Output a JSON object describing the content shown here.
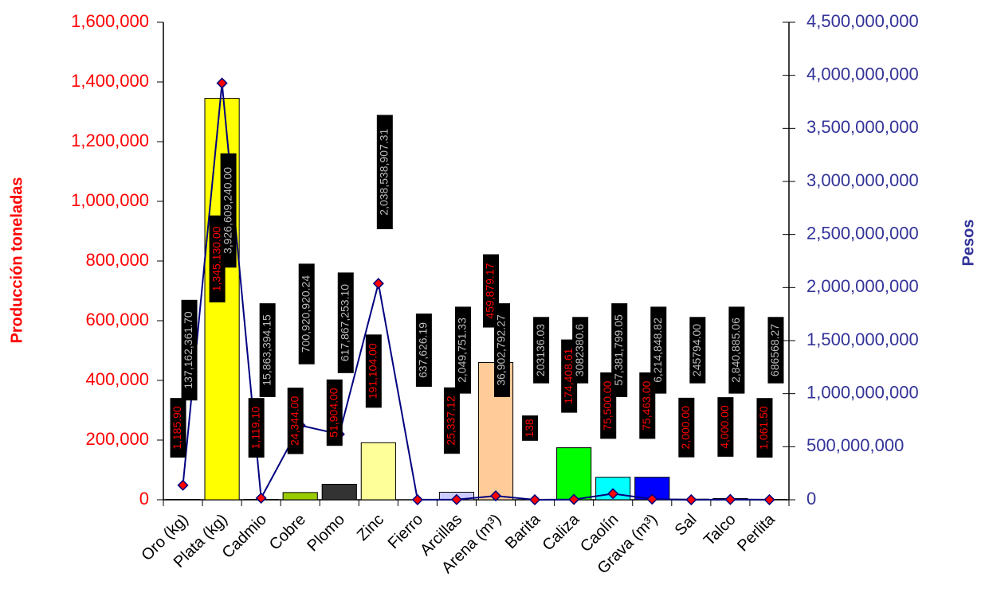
{
  "chart_data": {
    "type": "bar",
    "categories": [
      "Oro (kg)",
      "Plata (kg)",
      "Cadmio",
      "Cobre",
      "Plomo",
      "Zinc",
      "Fierro",
      "Arcillas",
      "Arena (m³)",
      "Barita",
      "Caliza",
      "Caolín",
      "Grava (m³)",
      "Sal",
      "Talco",
      "Perlita"
    ],
    "ylabel": "Producción toneladas",
    "y2label": "Pesos",
    "ylim": [
      0,
      1600000
    ],
    "yticks": [
      0,
      {
        "value": 200000,
        "label": "200,000"
      },
      {
        "value": 400000,
        "label": "400,000"
      },
      {
        "value": 600000,
        "label": "600,000"
      },
      {
        "value": 800000,
        "label": "800,000"
      },
      {
        "value": 1000000,
        "label": "1,000,000"
      },
      {
        "value": 1200000,
        "label": "1,200,000"
      },
      {
        "value": 1400000,
        "label": "1,400,000"
      },
      {
        "value": 1600000,
        "label": "1,600,000"
      }
    ],
    "y2lim": [
      0,
      4500000000
    ],
    "y2ticks": [
      0,
      {
        "value": 500000000,
        "label": "500,000,000"
      },
      {
        "value": 1000000000,
        "label": "1,000,000,000"
      },
      {
        "value": 1500000000,
        "label": "1,500,000,000"
      },
      {
        "value": 2000000000,
        "label": "2,000,000,000"
      },
      {
        "value": 2500000000,
        "label": "2,500,000,000"
      },
      {
        "value": 3000000000,
        "label": "3,000,000,000"
      },
      {
        "value": 3500000000,
        "label": "3,500,000,000"
      },
      {
        "value": 4000000000,
        "label": "4,000,000,000"
      },
      {
        "value": 4500000000,
        "label": "4,500,000,000"
      }
    ],
    "ycolor": "#ff0000",
    "y2color": "#333399",
    "series": [
      {
        "type": "bar",
        "colors": [
          "#ffcc00",
          "#ffff00",
          "#9999ff",
          "#99cc00",
          "#333333",
          "#ffff99",
          null,
          "#ccccff",
          "#ffcc99",
          "#ff8080",
          "#00ff00",
          "#00ffff",
          "#0000ff",
          "#ff00ff",
          "#333399",
          "#ffcc00"
        ],
        "values": [
          1185.9,
          1345130,
          1119.1,
          24344,
          51904,
          191104,
          null,
          25337.12,
          459879.17,
          138,
          174408.61,
          75500,
          75463,
          2000,
          4000,
          1061.5
        ],
        "value_labels": [
          "1,185.90",
          "1,345,130.00",
          "1,119.10",
          "24,344.00",
          "51,904.00",
          "191,104.00",
          null,
          "25,337.12",
          "459,879.17",
          "138",
          "174,408.61",
          "75,500.00",
          "75,463.00",
          "2,000.00",
          "4,000.00",
          "1,061.50"
        ]
      },
      {
        "type": "line",
        "axis": "y2",
        "color": "#000080",
        "marker_color": "#ff0000",
        "values": [
          137162361.7,
          3926609240,
          15863394.15,
          700920920.24,
          617867253.1,
          2038538907.31,
          637626.19,
          2049751.33,
          36902792.27,
          203136.03,
          3082380.6,
          57381799.05,
          6214848.82,
          245794,
          2840885.06,
          686568.27
        ],
        "value_labels": [
          "137,162,361.70",
          "3,926,609,240.00",
          "15,863,394.15",
          "700,920,920.24",
          "617,867,253.10",
          "2,038,538,907.31",
          "637,626.19",
          "2,049,751.33",
          "36,902,792.27",
          "203136.03",
          "3082380.6",
          "57,381,799.05",
          "6,214,848.82",
          "245794.00",
          "2,840,885.06",
          "686568.27"
        ]
      }
    ]
  }
}
